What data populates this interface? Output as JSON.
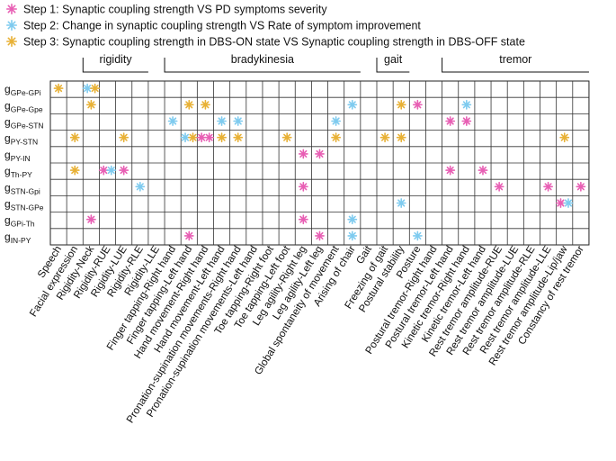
{
  "chart_data": {
    "type": "table",
    "title": "",
    "legend": [
      {
        "step": 1,
        "label": "Step 1: Synaptic coupling strength VS PD symptoms severity",
        "color": "#e85fb4"
      },
      {
        "step": 2,
        "label": "Step 2: Change in synaptic coupling strength VS Rate of symptom improvement",
        "color": "#7fcbef"
      },
      {
        "step": 3,
        "label": "Step 3: Synaptic coupling strength in DBS-ON state VS Synaptic coupling strength in DBS-OFF state",
        "color": "#e8b136"
      }
    ],
    "groups": [
      {
        "label": "rigidity",
        "from": 1,
        "to": 5
      },
      {
        "label": "bradykinesia",
        "from": 6,
        "to": 18
      },
      {
        "label": "gait",
        "from": 19,
        "to": 21
      },
      {
        "label": "tremor",
        "from": 23,
        "to": 32
      }
    ],
    "rows": [
      {
        "base": "g",
        "sub": "GPe-GPi"
      },
      {
        "base": "g",
        "sub": "GPe-Gpe"
      },
      {
        "base": "g",
        "sub": "GPe-STN"
      },
      {
        "base": "g",
        "sub": "PY-STN"
      },
      {
        "base": "g",
        "sub": "PY-IN"
      },
      {
        "base": "g",
        "sub": "Th-PY"
      },
      {
        "base": "g",
        "sub": "STN-Gpi"
      },
      {
        "base": "g",
        "sub": "STN-GPe"
      },
      {
        "base": "g",
        "sub": "GPi-Th"
      },
      {
        "base": "g",
        "sub": "IN-PY"
      }
    ],
    "columns": [
      "Speech",
      "Facial expression",
      "Rigidity-Neck",
      "Rigidity-RUE",
      "Rigidity-LUE",
      "Rigidity-RLE",
      "Rigidity-LLE",
      "Finger tapping-Right hand",
      "Finger tapping-Left hand",
      "Hand movement-Right hand",
      "Hand movement-Left hand",
      "Pronation-supination movements-Right hand",
      "Pronation-supination movements-Left hand",
      "Toe tapping-Right foot",
      "Toe tapping-Left foot",
      "Leg agility-Right leg",
      "Leg agility-Left leg",
      "Global spontaneity of movement",
      "Arising of chair",
      "Gait",
      "Freezing of gait",
      "Postural stability",
      "Posture",
      "Postural tremor-Right hand",
      "Postural tremor-Left hand",
      "Kinetic tremor-Right hand",
      "Kinetic tremor-Left hand",
      "Rest tremor amplitude-RUE",
      "Rest tremor amplitude-LUE",
      "Rest tremor amplitude-RLE",
      "Rest tremor amplitude-LLE",
      "Rest tremor amplitude-Lip/jaw",
      "Constancy of rest tremor"
    ],
    "marks": [
      [
        0,
        0,
        [
          3
        ]
      ],
      [
        0,
        2,
        [
          2,
          3
        ]
      ],
      [
        1,
        2,
        [
          3
        ]
      ],
      [
        1,
        8,
        [
          3
        ]
      ],
      [
        1,
        9,
        [
          3
        ]
      ],
      [
        1,
        18,
        [
          2
        ]
      ],
      [
        1,
        21,
        [
          3
        ]
      ],
      [
        1,
        22,
        [
          1
        ]
      ],
      [
        1,
        25,
        [
          2
        ]
      ],
      [
        2,
        7,
        [
          2
        ]
      ],
      [
        2,
        10,
        [
          2
        ]
      ],
      [
        2,
        11,
        [
          2
        ]
      ],
      [
        2,
        17,
        [
          2
        ]
      ],
      [
        2,
        24,
        [
          1
        ]
      ],
      [
        2,
        25,
        [
          1
        ]
      ],
      [
        3,
        1,
        [
          3
        ]
      ],
      [
        3,
        4,
        [
          3
        ]
      ],
      [
        3,
        8,
        [
          2,
          3
        ]
      ],
      [
        3,
        9,
        [
          1,
          1
        ]
      ],
      [
        3,
        10,
        [
          3
        ]
      ],
      [
        3,
        11,
        [
          3
        ]
      ],
      [
        3,
        14,
        [
          3
        ]
      ],
      [
        3,
        17,
        [
          3
        ]
      ],
      [
        3,
        20,
        [
          3
        ]
      ],
      [
        3,
        21,
        [
          3
        ]
      ],
      [
        3,
        31,
        [
          3
        ]
      ],
      [
        4,
        15,
        [
          1
        ]
      ],
      [
        4,
        16,
        [
          1
        ]
      ],
      [
        5,
        1,
        [
          3
        ]
      ],
      [
        5,
        3,
        [
          1,
          2
        ]
      ],
      [
        5,
        4,
        [
          1
        ]
      ],
      [
        5,
        24,
        [
          1
        ]
      ],
      [
        5,
        26,
        [
          1
        ]
      ],
      [
        6,
        5,
        [
          2
        ]
      ],
      [
        6,
        15,
        [
          1
        ]
      ],
      [
        6,
        27,
        [
          1
        ]
      ],
      [
        6,
        30,
        [
          1
        ]
      ],
      [
        6,
        32,
        [
          1
        ]
      ],
      [
        7,
        21,
        [
          2
        ]
      ],
      [
        7,
        31,
        [
          1,
          2
        ]
      ],
      [
        8,
        2,
        [
          1
        ]
      ],
      [
        8,
        15,
        [
          1
        ]
      ],
      [
        8,
        18,
        [
          2
        ]
      ],
      [
        9,
        8,
        [
          1
        ]
      ],
      [
        9,
        16,
        [
          1
        ]
      ],
      [
        9,
        18,
        [
          2
        ]
      ],
      [
        9,
        22,
        [
          2
        ]
      ]
    ]
  }
}
